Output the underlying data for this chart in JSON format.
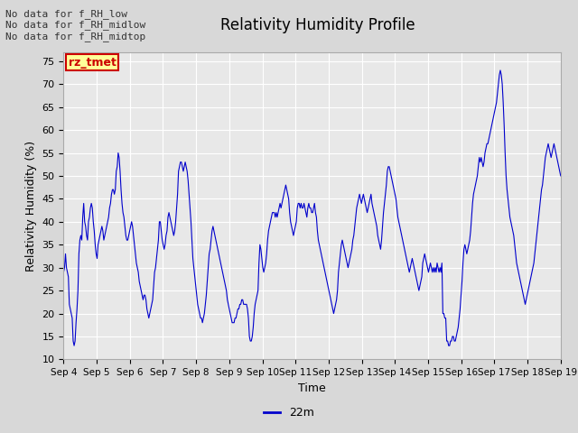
{
  "title": "Relativity Humidity Profile",
  "xlabel": "Time",
  "ylabel": "Relativity Humidity (%)",
  "ylim": [
    10,
    77
  ],
  "yticks": [
    10,
    15,
    20,
    25,
    30,
    35,
    40,
    45,
    50,
    55,
    60,
    65,
    70,
    75
  ],
  "x_labels": [
    "Sep 4",
    "Sep 5",
    "Sep 6",
    "Sep 7",
    "Sep 8",
    "Sep 9",
    "Sep 10",
    "Sep 11",
    "Sep 12",
    "Sep 13",
    "Sep 14",
    "Sep 15",
    "Sep 16",
    "Sep 17",
    "Sep 18",
    "Sep 19"
  ],
  "line_color": "#0000cc",
  "legend_label": "22m",
  "legend_box_color": "#ffff99",
  "legend_box_edge": "#cc0000",
  "annotation_lines": [
    "No data for f_RH_low",
    "No data for f_RH_midlow",
    "No data for f_RH_midtop"
  ],
  "annotation_color": "#333333",
  "bg_color": "#e8e8e8",
  "grid_color": "#ffffff",
  "fig_bg_color": "#d8d8d8",
  "humidity_values": [
    29,
    30,
    33,
    30,
    29,
    28,
    22,
    21,
    20,
    19,
    14,
    13,
    14,
    18,
    21,
    25,
    33,
    36,
    37,
    36,
    41,
    44,
    40,
    39,
    37,
    36,
    40,
    41,
    43,
    44,
    43,
    40,
    38,
    35,
    33,
    32,
    35,
    36,
    37,
    38,
    39,
    38,
    36,
    37,
    38,
    39,
    40,
    41,
    43,
    44,
    46,
    47,
    47,
    46,
    47,
    51,
    52,
    55,
    54,
    51,
    47,
    44,
    42,
    41,
    39,
    37,
    36,
    36,
    37,
    38,
    39,
    40,
    39,
    37,
    35,
    33,
    31,
    30,
    29,
    27,
    26,
    25,
    24,
    23,
    24,
    24,
    23,
    21,
    20,
    19,
    20,
    21,
    22,
    23,
    26,
    29,
    30,
    32,
    34,
    36,
    40,
    40,
    38,
    36,
    35,
    34,
    35,
    37,
    38,
    41,
    42,
    41,
    40,
    39,
    38,
    37,
    38,
    40,
    43,
    46,
    51,
    52,
    53,
    53,
    52,
    51,
    52,
    53,
    52,
    51,
    49,
    46,
    43,
    40,
    36,
    32,
    30,
    28,
    26,
    24,
    22,
    21,
    20,
    19,
    19,
    18,
    19,
    20,
    22,
    24,
    27,
    30,
    33,
    34,
    36,
    38,
    39,
    38,
    37,
    36,
    35,
    34,
    33,
    32,
    31,
    30,
    29,
    28,
    27,
    26,
    25,
    23,
    22,
    21,
    20,
    19,
    18,
    18,
    18,
    19,
    19,
    20,
    21,
    21,
    22,
    22,
    23,
    23,
    22,
    22,
    22,
    22,
    21,
    19,
    15,
    14,
    14,
    15,
    17,
    20,
    22,
    23,
    24,
    25,
    31,
    35,
    34,
    32,
    30,
    29,
    30,
    31,
    33,
    36,
    38,
    39,
    40,
    41,
    42,
    42,
    42,
    41,
    42,
    41,
    42,
    43,
    44,
    43,
    44,
    45,
    46,
    47,
    48,
    47,
    46,
    45,
    42,
    40,
    39,
    38,
    37,
    38,
    39,
    40,
    43,
    44,
    44,
    43,
    44,
    43,
    43,
    44,
    43,
    42,
    41,
    43,
    44,
    43,
    43,
    42,
    42,
    43,
    44,
    42,
    41,
    38,
    36,
    35,
    34,
    33,
    32,
    31,
    30,
    29,
    28,
    27,
    26,
    25,
    24,
    23,
    22,
    21,
    20,
    21,
    22,
    23,
    25,
    29,
    31,
    33,
    35,
    36,
    35,
    34,
    33,
    32,
    31,
    30,
    31,
    32,
    33,
    34,
    36,
    37,
    39,
    41,
    43,
    44,
    45,
    46,
    45,
    44,
    45,
    46,
    45,
    44,
    43,
    42,
    43,
    44,
    45,
    46,
    44,
    43,
    42,
    41,
    40,
    39,
    37,
    36,
    35,
    34,
    36,
    39,
    42,
    44,
    46,
    48,
    51,
    52,
    52,
    51,
    50,
    49,
    48,
    47,
    46,
    45,
    43,
    41,
    40,
    39,
    38,
    37,
    36,
    35,
    34,
    33,
    32,
    31,
    30,
    29,
    30,
    31,
    32,
    31,
    30,
    29,
    28,
    27,
    26,
    25,
    26,
    27,
    28,
    31,
    32,
    33,
    32,
    31,
    30,
    29,
    30,
    31,
    30,
    29,
    30,
    29,
    30,
    29,
    31,
    30,
    29,
    30,
    29,
    31,
    20,
    20,
    19,
    19,
    14,
    14,
    13,
    13,
    14,
    14,
    15,
    15,
    14,
    14,
    15,
    16,
    17,
    19,
    21,
    24,
    27,
    31,
    34,
    35,
    34,
    33,
    34,
    35,
    36,
    38,
    41,
    44,
    46,
    47,
    48,
    49,
    50,
    52,
    54,
    53,
    54,
    53,
    52,
    53,
    55,
    56,
    57,
    57,
    58,
    59,
    60,
    61,
    62,
    63,
    64,
    65,
    66,
    68,
    70,
    72,
    73,
    72,
    70,
    66,
    61,
    55,
    50,
    47,
    45,
    43,
    41,
    40,
    39,
    38,
    37,
    35,
    33,
    31,
    30,
    29,
    28,
    27,
    26,
    25,
    24,
    23,
    22,
    23,
    24,
    25,
    26,
    27,
    28,
    29,
    30,
    31,
    33,
    35,
    37,
    39,
    41,
    43,
    45,
    47,
    48,
    50,
    52,
    54,
    55,
    56,
    57,
    56,
    55,
    54,
    55,
    56,
    57,
    56,
    55,
    54,
    53,
    52,
    51,
    50
  ]
}
